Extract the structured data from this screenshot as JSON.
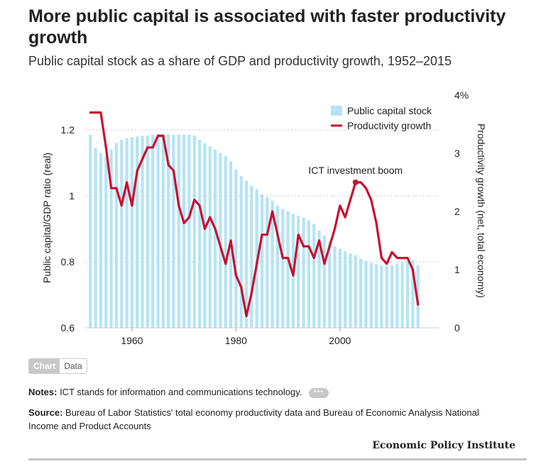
{
  "header": {
    "title": "More public capital is associated with faster productivity growth",
    "subtitle": "Public capital stock as a share of GDP and productivity growth, 1952–2015"
  },
  "chart_data": {
    "type": "bar+line",
    "x": [
      1952,
      1953,
      1954,
      1955,
      1956,
      1957,
      1958,
      1959,
      1960,
      1961,
      1962,
      1963,
      1964,
      1965,
      1966,
      1967,
      1968,
      1969,
      1970,
      1971,
      1972,
      1973,
      1974,
      1975,
      1976,
      1977,
      1978,
      1979,
      1980,
      1981,
      1982,
      1983,
      1984,
      1985,
      1986,
      1987,
      1988,
      1989,
      1990,
      1991,
      1992,
      1993,
      1994,
      1995,
      1996,
      1997,
      1998,
      1999,
      2000,
      2001,
      2002,
      2003,
      2004,
      2005,
      2006,
      2007,
      2008,
      2009,
      2010,
      2011,
      2012,
      2013,
      2014,
      2015
    ],
    "series": [
      {
        "name": "Public capital stock",
        "type": "bar",
        "axis": "left",
        "color": "#b5e3f5",
        "values": [
          1.185,
          1.145,
          1.13,
          1.12,
          1.14,
          1.16,
          1.17,
          1.175,
          1.178,
          1.18,
          1.182,
          1.183,
          1.185,
          1.188,
          1.188,
          1.186,
          1.185,
          1.185,
          1.185,
          1.185,
          1.183,
          1.17,
          1.16,
          1.15,
          1.14,
          1.13,
          1.12,
          1.105,
          1.08,
          1.06,
          1.045,
          1.03,
          1.02,
          1.005,
          0.995,
          0.985,
          0.97,
          0.96,
          0.953,
          0.945,
          0.94,
          0.933,
          0.925,
          0.915,
          0.895,
          0.88,
          0.862,
          0.848,
          0.84,
          0.832,
          0.825,
          0.82,
          0.81,
          0.803,
          0.797,
          0.793,
          0.79,
          0.788,
          0.79,
          0.795,
          0.8,
          0.803,
          0.805,
          0.79
        ]
      },
      {
        "name": "Productivity growth",
        "type": "line",
        "axis": "right",
        "color": "#c8102e",
        "values": [
          3.7,
          3.7,
          3.7,
          3.1,
          2.4,
          2.4,
          2.1,
          2.5,
          2.1,
          2.7,
          2.9,
          3.1,
          3.1,
          3.3,
          3.3,
          2.8,
          2.7,
          2.1,
          1.8,
          1.9,
          2.2,
          2.1,
          1.7,
          1.9,
          1.7,
          1.4,
          1.1,
          1.5,
          0.9,
          0.7,
          0.2,
          0.6,
          1.1,
          1.6,
          1.6,
          2.0,
          1.6,
          1.2,
          1.2,
          0.9,
          1.6,
          1.4,
          1.4,
          1.2,
          1.5,
          1.1,
          1.4,
          1.7,
          2.1,
          1.9,
          2.2,
          2.5,
          2.5,
          2.4,
          2.2,
          1.8,
          1.2,
          1.1,
          1.3,
          1.2,
          1.2,
          1.2,
          1.0,
          0.4
        ]
      }
    ],
    "left_axis": {
      "label": "Public capital/GDP ratio (real)",
      "range": [
        0.6,
        1.3
      ],
      "ticks": [
        "0.6",
        "0.8",
        "1",
        "1.2"
      ],
      "tick_values": [
        0.6,
        0.8,
        1.0,
        1.2
      ]
    },
    "right_axis": {
      "label": "Productivity growth (net, total economy)",
      "range": [
        0,
        4
      ],
      "ticks": [
        "0",
        "1",
        "2",
        "3",
        "4%"
      ],
      "tick_values": [
        0,
        1,
        2,
        3,
        4
      ]
    },
    "x_axis": {
      "ticks": [
        "1960",
        "1980",
        "2000"
      ],
      "tick_values": [
        1960,
        1980,
        2000
      ],
      "range": [
        1951,
        2019
      ]
    },
    "grid": true,
    "legend": {
      "position": "top-right",
      "items": [
        "Public capital stock",
        "Productivity growth"
      ]
    },
    "annotation": {
      "text": "ICT investment boom",
      "year": 2003,
      "value": 2.5
    }
  },
  "toggle": {
    "chart_label": "Chart",
    "data_label": "Data"
  },
  "notes": {
    "label": "Notes:",
    "text": " ICT stands for information and communications technology.",
    "more": "•••"
  },
  "source": {
    "label": "Source:",
    "text": " Bureau of Labor Statistics' total economy productivity data and Bureau of Economic Analysis National Income and Product Accounts"
  },
  "brand": "Economic Policy Institute"
}
